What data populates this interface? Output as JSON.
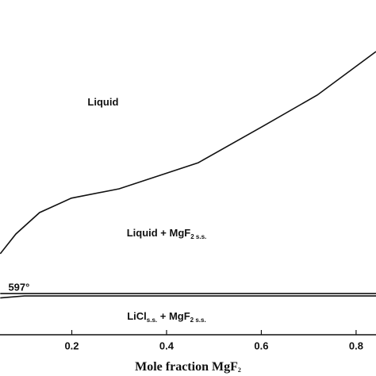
{
  "chart_data": {
    "type": "line",
    "x_label_parts": [
      "Mole fraction MgF",
      "2"
    ],
    "xlim": [
      0.0485,
      0.842
    ],
    "ylim": [
      0,
      100
    ],
    "xticks": [
      0.2,
      0.4,
      0.6,
      0.8
    ],
    "series": [
      {
        "color": "#111111",
        "x": [
          0.049,
          0.082,
          0.132,
          0.199,
          0.3,
          0.467,
          0.601,
          0.718,
          0.842
        ],
        "values": [
          24.2,
          30.1,
          36.5,
          40.8,
          43.6,
          51.4,
          62.1,
          71.6,
          84.6
        ]
      },
      {
        "color": "#111111",
        "x": [
          0.049,
          0.842
        ],
        "values": [
          12.3,
          12.3
        ]
      },
      {
        "color": "#111111",
        "x": [
          0.049,
          0.1,
          0.842
        ],
        "values": [
          11.0,
          11.6,
          11.6
        ]
      }
    ],
    "annotations": [
      {
        "parts": [
          "Liquid"
        ],
        "x": 0.266,
        "y": 69.2
      },
      {
        "parts": [
          "Liquid + MgF",
          "2 s.s."
        ],
        "x": 0.4,
        "y": 30.1
      },
      {
        "parts": [
          "LiCl",
          "s.s.",
          " + MgF",
          "2 s.s."
        ],
        "x": 0.4,
        "y": 5.2
      },
      {
        "parts": [
          "597°"
        ],
        "x": 0.066,
        "y": 13.9
      }
    ]
  }
}
